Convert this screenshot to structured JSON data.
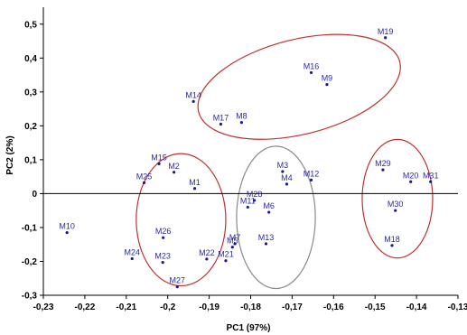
{
  "chart_data": {
    "type": "scatter",
    "title": "",
    "xlabel": "PC1 (97%)",
    "ylabel": "PC2 (2%)",
    "xlim": [
      -0.23,
      -0.13
    ],
    "ylim": [
      -0.3,
      0.55
    ],
    "x_ticks": [
      -0.23,
      -0.22,
      -0.21,
      -0.2,
      -0.19,
      -0.18,
      -0.17,
      -0.16,
      -0.15,
      -0.14,
      -0.13
    ],
    "x_tick_labels": [
      "-0,23",
      "-0,22",
      "-0,21",
      "-0,2",
      "-0,19",
      "-0,18",
      "-0,17",
      "-0,16",
      "-0,15",
      "-0,14",
      "-0,13"
    ],
    "y_ticks": [
      -0.3,
      -0.2,
      -0.1,
      0,
      0.1,
      0.2,
      0.3,
      0.4,
      0.5
    ],
    "y_tick_labels": [
      "-0,3",
      "-0,2",
      "-0,1",
      "0",
      "0,1",
      "0,2",
      "0,3",
      "0,4",
      "0,5"
    ],
    "grid": false,
    "zero_line": true,
    "point_color": "#1a1a8c",
    "label_color": "#2a2aa0",
    "points": [
      {
        "label": "M1",
        "x": -0.1935,
        "y": 0.015
      },
      {
        "label": "M2",
        "x": -0.1985,
        "y": 0.063
      },
      {
        "label": "M3",
        "x": -0.1723,
        "y": 0.065
      },
      {
        "label": "M4",
        "x": -0.1713,
        "y": 0.028
      },
      {
        "label": "M5",
        "x": -0.1844,
        "y": -0.158
      },
      {
        "label": "M6",
        "x": -0.1756,
        "y": -0.055
      },
      {
        "label": "M7",
        "x": -0.1838,
        "y": -0.148
      },
      {
        "label": "M8",
        "x": -0.1822,
        "y": 0.21
      },
      {
        "label": "M9",
        "x": -0.1616,
        "y": 0.322
      },
      {
        "label": "M10",
        "x": -0.2243,
        "y": -0.115
      },
      {
        "label": "M11",
        "x": -0.1807,
        "y": -0.04
      },
      {
        "label": "M12",
        "x": -0.1654,
        "y": 0.04
      },
      {
        "label": "M13",
        "x": -0.1763,
        "y": -0.148
      },
      {
        "label": "M14",
        "x": -0.1938,
        "y": 0.272
      },
      {
        "label": "M15",
        "x": -0.2021,
        "y": 0.088
      },
      {
        "label": "M16",
        "x": -0.1654,
        "y": 0.357
      },
      {
        "label": "M17",
        "x": -0.1872,
        "y": 0.205
      },
      {
        "label": "M18",
        "x": -0.1459,
        "y": -0.153
      },
      {
        "label": "M19",
        "x": -0.1475,
        "y": 0.46
      },
      {
        "label": "M20",
        "x": -0.1414,
        "y": 0.035
      },
      {
        "label": "M21",
        "x": -0.186,
        "y": -0.198
      },
      {
        "label": "M22",
        "x": -0.1906,
        "y": -0.193
      },
      {
        "label": "M23",
        "x": -0.2012,
        "y": -0.203
      },
      {
        "label": "M24",
        "x": -0.2086,
        "y": -0.192
      },
      {
        "label": "M25",
        "x": -0.2057,
        "y": 0.032
      },
      {
        "label": "M26",
        "x": -0.2011,
        "y": -0.13
      },
      {
        "label": "M27",
        "x": -0.1977,
        "y": -0.275
      },
      {
        "label": "M28",
        "x": -0.1791,
        "y": -0.02
      },
      {
        "label": "M29",
        "x": -0.1481,
        "y": 0.07
      },
      {
        "label": "M30",
        "x": -0.1451,
        "y": -0.05
      },
      {
        "label": "M31",
        "x": -0.1366,
        "y": 0.035
      }
    ],
    "groups": [
      {
        "color": "#c03030",
        "cx": -0.1968,
        "cy": -0.077,
        "rx": 0.0108,
        "ry": 0.195,
        "rot": 0
      },
      {
        "color": "#8a8a8a",
        "cx": -0.1739,
        "cy": -0.07,
        "rx": 0.0095,
        "ry": 0.21,
        "rot": 0
      },
      {
        "color": "#c03030",
        "cx": -0.1683,
        "cy": 0.315,
        "rx": 0.025,
        "ry": 0.14,
        "rot": -14
      },
      {
        "color": "#c03030",
        "cx": -0.1446,
        "cy": -0.015,
        "rx": 0.0085,
        "ry": 0.175,
        "rot": 0
      }
    ]
  }
}
